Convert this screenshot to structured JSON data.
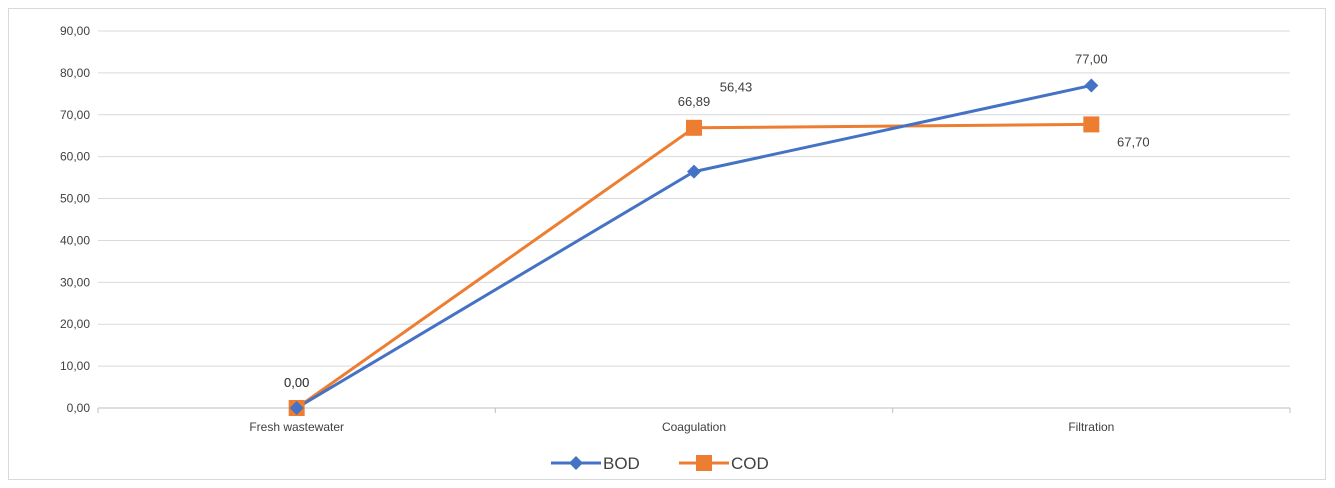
{
  "chart_data": {
    "type": "line",
    "categories": [
      "Fresh wastewater",
      "Coagulation",
      "Filtration"
    ],
    "series": [
      {
        "name": "BOD",
        "values": [
          0.0,
          56.43,
          77.0
        ],
        "labels": [
          "0,00",
          "56,43",
          "77,00"
        ],
        "color": "#4472C4",
        "marker": "diamond"
      },
      {
        "name": "COD",
        "values": [
          0.0,
          66.89,
          67.7
        ],
        "labels": [
          "0,00",
          "66,89",
          "67,70"
        ],
        "color": "#ED7D31",
        "marker": "square"
      }
    ],
    "yticks": [
      {
        "value": 0,
        "label": "0,00"
      },
      {
        "value": 10,
        "label": "10,00"
      },
      {
        "value": 20,
        "label": "20,00"
      },
      {
        "value": 30,
        "label": "30,00"
      },
      {
        "value": 40,
        "label": "40,00"
      },
      {
        "value": 50,
        "label": "50,00"
      },
      {
        "value": 60,
        "label": "60,00"
      },
      {
        "value": 70,
        "label": "70,00"
      },
      {
        "value": 80,
        "label": "80,00"
      },
      {
        "value": 90,
        "label": "90,00"
      }
    ],
    "ylim": [
      0,
      90
    ],
    "grid": true,
    "legend_position": "bottom"
  }
}
